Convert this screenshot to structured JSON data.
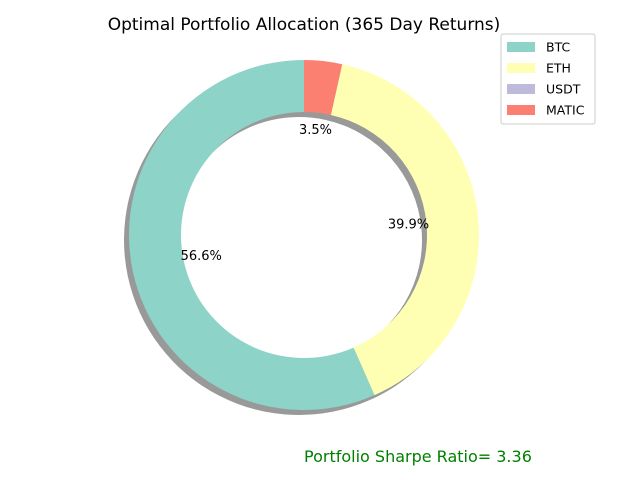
{
  "chart_data": {
    "type": "pie",
    "style": "donut",
    "title": "Optimal Portfolio Allocation (365 Day Returns)",
    "categories": [
      "BTC",
      "ETH",
      "USDT",
      "MATIC"
    ],
    "values": [
      56.6,
      39.9,
      0.0,
      3.5
    ],
    "labels": [
      "56.6%",
      "39.9%",
      "",
      "3.5%"
    ],
    "colors": [
      "#8dd3c7",
      "#ffffb3",
      "#bebada",
      "#fb8072"
    ],
    "start_angle": "90",
    "direction": "counterclockwise",
    "shadow": true,
    "legend": {
      "placement": "top-right",
      "entries": [
        "BTC",
        "ETH",
        "USDT",
        "MATIC"
      ]
    }
  },
  "annotation": {
    "text": "Portfolio Sharpe Ratio= 3.36",
    "color": "#008000"
  }
}
